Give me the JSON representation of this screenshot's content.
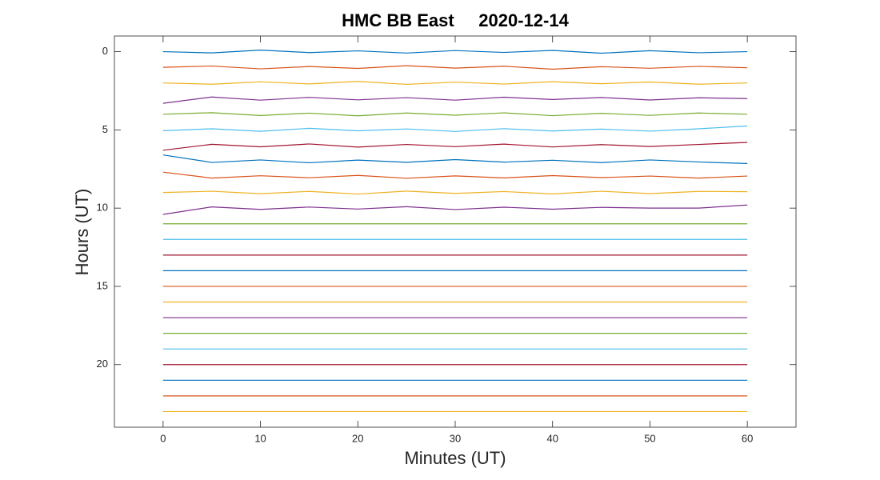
{
  "chart_data": {
    "type": "helicorder",
    "title": "HMC BB East     2020-12-14",
    "x_label": "Minutes (UT)",
    "y_label": "Hours (UT)",
    "xlim": [
      -5,
      65
    ],
    "ylim": [
      -1,
      24
    ],
    "y_reversed": true,
    "xticks": [
      0,
      10,
      20,
      30,
      40,
      50,
      60
    ],
    "yticks": [
      0,
      5,
      10,
      15,
      20
    ],
    "x": [
      0,
      5,
      10,
      15,
      20,
      25,
      30,
      35,
      40,
      45,
      50,
      55,
      60
    ],
    "series": [
      {
        "color": "#0072BD",
        "values": [
          0,
          0.08,
          -0.1,
          0.06,
          -0.05,
          0.09,
          -0.07,
          0.05,
          -0.08,
          0.1,
          -0.06,
          0.07,
          0
        ]
      },
      {
        "color": "#D95319",
        "values": [
          1,
          0.92,
          1.1,
          0.95,
          1.07,
          0.9,
          1.05,
          0.93,
          1.12,
          0.96,
          1.06,
          0.94,
          1.03
        ]
      },
      {
        "color": "#EDB120",
        "values": [
          2,
          2.08,
          1.93,
          2.06,
          1.9,
          2.09,
          1.95,
          2.07,
          1.92,
          2.05,
          1.94,
          2.08,
          2
        ]
      },
      {
        "color": "#7E2F8E",
        "values": [
          3.3,
          2.9,
          3.1,
          2.92,
          3.08,
          2.94,
          3.1,
          2.91,
          3.06,
          2.93,
          3.09,
          2.95,
          3
        ]
      },
      {
        "color": "#77AC30",
        "values": [
          4,
          3.9,
          4.08,
          3.93,
          4.1,
          3.92,
          4.06,
          3.91,
          4.09,
          3.94,
          4.07,
          3.92,
          4
        ]
      },
      {
        "color": "#4DBEEE",
        "values": [
          5.05,
          4.93,
          5.09,
          4.9,
          5.06,
          4.94,
          5.1,
          4.92,
          5.07,
          4.95,
          5.08,
          4.93,
          4.75
        ]
      },
      {
        "color": "#A2142F",
        "values": [
          6.3,
          5.92,
          6.08,
          5.9,
          6.1,
          5.93,
          6.07,
          5.91,
          6.09,
          5.94,
          6.06,
          5.93,
          5.8
        ]
      },
      {
        "color": "#0072BD",
        "values": [
          6.6,
          7.08,
          6.92,
          7.1,
          6.93,
          7.07,
          6.9,
          7.06,
          6.94,
          7.09,
          6.92,
          7.05,
          7.15
        ]
      },
      {
        "color": "#D95319",
        "values": [
          7.7,
          8.08,
          7.93,
          8.06,
          7.91,
          8.09,
          7.94,
          8.07,
          7.92,
          8.05,
          7.95,
          8.08,
          7.95
        ]
      },
      {
        "color": "#EDB120",
        "values": [
          9,
          8.92,
          9.08,
          8.93,
          9.1,
          8.91,
          9.06,
          8.94,
          9.09,
          8.92,
          9.07,
          8.93,
          8.95
        ]
      },
      {
        "color": "#7E2F8E",
        "values": [
          10.4,
          9.92,
          10.08,
          9.93,
          10.06,
          9.91,
          10.09,
          9.94,
          10.07,
          9.95,
          10,
          10,
          9.8
        ]
      },
      {
        "color": "#77AC30",
        "values": [
          11,
          11,
          11,
          11,
          11,
          11,
          11,
          11,
          11,
          11,
          11,
          11,
          11
        ]
      },
      {
        "color": "#4DBEEE",
        "values": [
          12,
          12,
          12,
          12,
          12,
          12,
          12,
          12,
          12,
          12,
          12,
          12,
          12
        ]
      },
      {
        "color": "#A2142F",
        "values": [
          13,
          13,
          13,
          13,
          13,
          13,
          13,
          13,
          13,
          13,
          13,
          13,
          13
        ]
      },
      {
        "color": "#0072BD",
        "values": [
          14,
          14,
          14,
          14,
          14,
          14,
          14,
          14,
          14,
          14,
          14,
          14,
          14
        ]
      },
      {
        "color": "#D95319",
        "values": [
          15,
          15,
          15,
          15,
          15,
          15,
          15,
          15,
          15,
          15,
          15,
          15,
          15
        ]
      },
      {
        "color": "#EDB120",
        "values": [
          16,
          16,
          16,
          16,
          16,
          16,
          16,
          16,
          16,
          16,
          16,
          16,
          16
        ]
      },
      {
        "color": "#7E2F8E",
        "values": [
          17,
          17,
          17,
          17,
          17,
          17,
          17,
          17,
          17,
          17,
          17,
          17,
          17
        ]
      },
      {
        "color": "#77AC30",
        "values": [
          18,
          18,
          18,
          18,
          18,
          18,
          18,
          18,
          18,
          18,
          18,
          18,
          18
        ]
      },
      {
        "color": "#4DBEEE",
        "values": [
          19,
          19,
          19,
          19,
          19,
          19,
          19,
          19,
          19,
          19,
          19,
          19,
          19
        ]
      },
      {
        "color": "#A2142F",
        "values": [
          20,
          20,
          20,
          20,
          20,
          20,
          20,
          20,
          20,
          20,
          20,
          20,
          20
        ]
      },
      {
        "color": "#0072BD",
        "values": [
          21,
          21,
          21,
          21,
          21,
          21,
          21,
          21,
          21,
          21,
          21,
          21,
          21
        ]
      },
      {
        "color": "#D95319",
        "values": [
          22,
          22,
          22,
          22,
          22,
          22,
          22,
          22,
          22,
          22,
          22,
          22,
          22
        ]
      },
      {
        "color": "#EDB120",
        "values": [
          23,
          23,
          23,
          23,
          23,
          23,
          23,
          23,
          23,
          23,
          23,
          23,
          23
        ]
      }
    ]
  }
}
